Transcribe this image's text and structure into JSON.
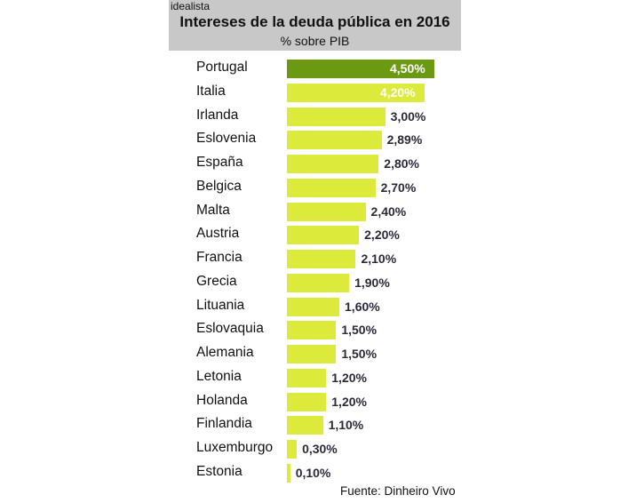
{
  "brand": "idealista",
  "chart_data": {
    "type": "bar",
    "orientation": "horizontal",
    "title": "Intereses de la deuda pública en 2016",
    "subtitle": "% sobre PIB",
    "categories": [
      "Portugal",
      "Italia",
      "Irlanda",
      "Eslovenia",
      "España",
      "Belgica",
      "Malta",
      "Austria",
      "Francia",
      "Grecia",
      "Lituania",
      "Eslovaquia",
      "Alemania",
      "Letonia",
      "Holanda",
      "Finlandia",
      "Luxemburgo",
      "Estonia"
    ],
    "values": [
      4.5,
      4.2,
      3.0,
      2.89,
      2.8,
      2.7,
      2.4,
      2.2,
      2.1,
      1.9,
      1.6,
      1.5,
      1.5,
      1.2,
      1.2,
      1.1,
      0.3,
      0.1
    ],
    "labels": [
      "4,50%",
      "4,20%",
      "3,00%",
      "2,89%",
      "2,80%",
      "2,70%",
      "2,40%",
      "2,20%",
      "2,10%",
      "1,90%",
      "1,60%",
      "1,50%",
      "1,50%",
      "1,20%",
      "1,20%",
      "1,10%",
      "0,30%",
      "0,10%"
    ],
    "highlight_color": "#6b9a12",
    "bar_color": "#dcea3c",
    "grid": false,
    "source": "Fuente: Dinheiro Vivo"
  }
}
